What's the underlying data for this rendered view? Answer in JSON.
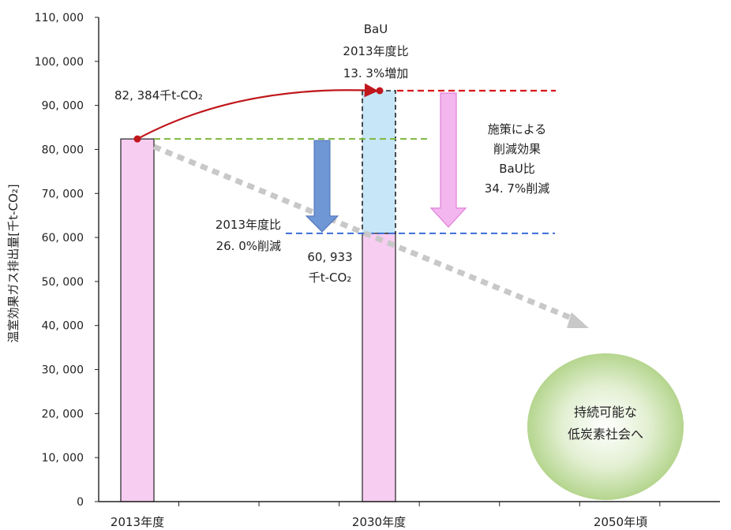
{
  "chart_data": {
    "type": "bar",
    "ylabel": "温室効果ガス排出量[千t-CO₂]",
    "ylim": [
      0,
      110000
    ],
    "y_ticks": [
      "0",
      "10, 000",
      "20, 000",
      "30, 000",
      "40, 000",
      "50, 000",
      "60, 000",
      "70, 000",
      "80, 000",
      "90, 000",
      "100, 000",
      "110, 000"
    ],
    "y_tick_values": [
      0,
      10000,
      20000,
      30000,
      40000,
      50000,
      60000,
      70000,
      80000,
      90000,
      100000,
      110000
    ],
    "categories": [
      "2013年度",
      "2030年度",
      "2050年頃"
    ],
    "bars": [
      {
        "category": "2013年度",
        "value": 82384
      },
      {
        "category": "2030年度",
        "value": 60933
      }
    ],
    "bau_value": 93338,
    "colors": {
      "bar": "#f8cdf2",
      "bau": "#c7e6f7",
      "curve": "#c0171c",
      "base_line": "#7cb83e",
      "target_line": "#3a6fd8",
      "bau_line": "#d8171c",
      "blue_arrow": "#6f97d6",
      "pink_arrow": "#f3b6ef",
      "trend": "#c8c8c8",
      "circle": "#bdd99a"
    },
    "annotations": {
      "base_value": "82, 384千t-CO₂",
      "bau_title": "BaU",
      "bau_ratio": "2013年度比",
      "bau_increase": "13. 3%増加",
      "measure_1": "施策による",
      "measure_2": "削減効果",
      "measure_3": "BaU比",
      "measure_4": "34. 7%削減",
      "ratio_1": "2013年度比",
      "ratio_2": "26. 0%削減",
      "target_value": "60, 933",
      "target_unit": "千t-CO₂",
      "vision_1": "持続可能な",
      "vision_2": "低炭素社会へ"
    }
  }
}
